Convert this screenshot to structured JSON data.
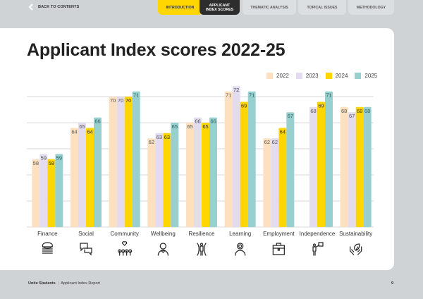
{
  "nav": {
    "back_label": "BACK TO CONTENTS",
    "tabs": [
      {
        "label": "INTRODUCTION"
      },
      {
        "label": "APPLICANT INDEX SCORES",
        "line1": "APPLICANT",
        "line2": "INDEX SCORES",
        "active": true
      },
      {
        "label": "THEMATIC ANALYSIS"
      },
      {
        "label": "TOPICAL ISSUES"
      },
      {
        "label": "METHODOLOGY"
      }
    ]
  },
  "page": {
    "title": "Applicant Index scores 2022-25"
  },
  "colors": {
    "2022": "#fde0bf",
    "2023": "#e2dcee",
    "2024": "#ffd600",
    "2025": "#98d0cf",
    "accent_yellow": "#ffd600",
    "dark": "#2d2d2d"
  },
  "chart_data": {
    "type": "bar",
    "title": "Applicant Index scores 2022-25",
    "xlabel": "",
    "ylabel": "",
    "ylim": [
      45,
      72
    ],
    "gridlines": [
      50,
      55,
      60,
      65,
      70
    ],
    "grid": true,
    "legend_position": "top-right",
    "categories": [
      "Finance",
      "Social",
      "Community",
      "Wellbeing",
      "Resilience",
      "Learning",
      "Employment",
      "Independence",
      "Sustainability"
    ],
    "category_icons": [
      "coins-euro-icon",
      "chat-bubbles-icon",
      "community-heart-icon",
      "person-heart-icon",
      "resilience-person-icon",
      "learning-person-icon",
      "briefcase-icon",
      "person-flag-icon",
      "hands-leaf-icon"
    ],
    "series": [
      {
        "name": "2022",
        "values": [
          58,
          64,
          70,
          62,
          65,
          71,
          62,
          null,
          68
        ]
      },
      {
        "name": "2023",
        "values": [
          59,
          65,
          70,
          63,
          66,
          72,
          62,
          68,
          67
        ]
      },
      {
        "name": "2024",
        "values": [
          58,
          64,
          70,
          63,
          65,
          69,
          64,
          69,
          68
        ]
      },
      {
        "name": "2025",
        "values": [
          59,
          66,
          71,
          65,
          66,
          71,
          67,
          71,
          68
        ]
      }
    ]
  },
  "footer": {
    "brand": "Unite Students",
    "report": "Applicant Index Report",
    "page_number": "9"
  }
}
